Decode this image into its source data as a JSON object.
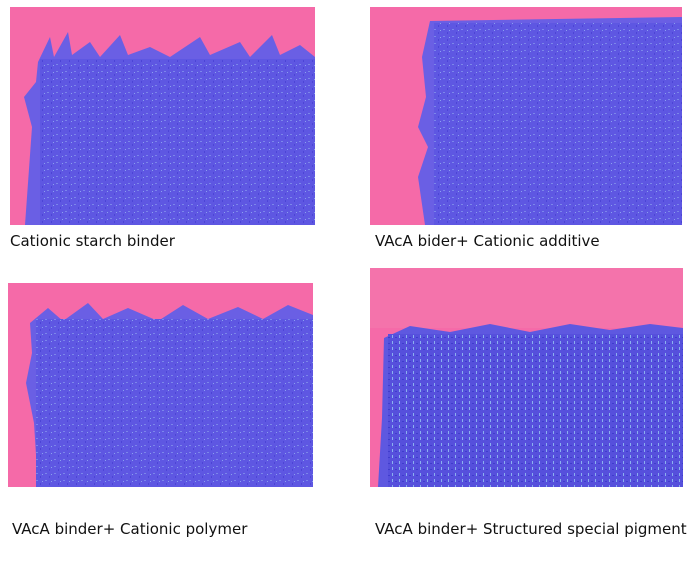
{
  "panels": [
    {
      "caption": "Cationic starch binder"
    },
    {
      "caption": "VAcA bider+ Cationic additive"
    },
    {
      "caption": "VAcA binder+ Cationic polymer"
    },
    {
      "caption": "VAcA binder+ Structured special pigment"
    }
  ]
}
